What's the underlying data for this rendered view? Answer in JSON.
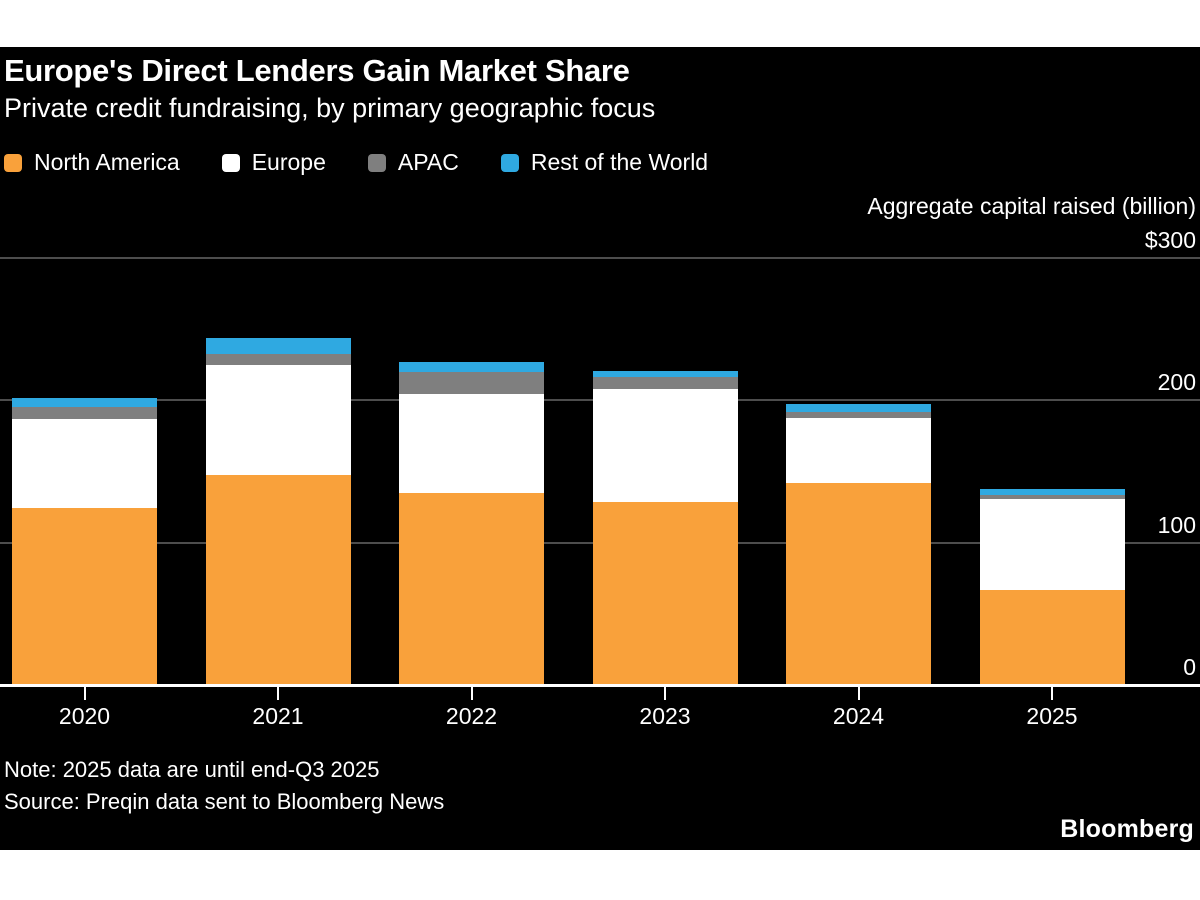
{
  "header": {
    "title": "Europe's Direct Lenders Gain Market Share",
    "subtitle": "Private credit fundraising, by primary geographic focus"
  },
  "axis": {
    "title": "Aggregate capital raised (billion)"
  },
  "chart_data": {
    "type": "bar",
    "stacked": true,
    "title": "Europe's Direct Lenders Gain Market Share",
    "subtitle": "Private credit fundraising, by primary geographic focus",
    "ylabel": "Aggregate capital raised (billion)",
    "ylim": [
      0,
      300
    ],
    "grid": "horizontal",
    "legend_position": "top",
    "categories": [
      "2020",
      "2021",
      "2022",
      "2023",
      "2024",
      "2025"
    ],
    "series": [
      {
        "name": "North America",
        "color": "#F9A13B",
        "values": [
          124,
          147,
          134,
          128,
          141,
          66
        ]
      },
      {
        "name": "Europe",
        "color": "#FFFFFF",
        "values": [
          62,
          77,
          70,
          79,
          46,
          64
        ]
      },
      {
        "name": "APAC",
        "color": "#7F7F7F",
        "values": [
          9,
          8,
          15,
          9,
          4,
          3
        ]
      },
      {
        "name": "Rest of the World",
        "color": "#2FA9E1",
        "values": [
          6,
          11,
          7,
          4,
          6,
          4
        ]
      }
    ],
    "yticks": [
      {
        "value": 300,
        "label": "$300"
      },
      {
        "value": 200,
        "label": "200"
      },
      {
        "value": 100,
        "label": "100"
      },
      {
        "value": 0,
        "label": "0"
      }
    ]
  },
  "colors": {
    "page_background": "#FFFFFF",
    "chart_background": "#000000",
    "gridline": "#4D4D4D",
    "axis_line": "#FFFFFF",
    "text": "#FFFFFF"
  },
  "footer": {
    "note": "Note: 2025 data are until end-Q3 2025",
    "source": "Source: Preqin data sent to Bloomberg News",
    "brand": "Bloomberg"
  }
}
